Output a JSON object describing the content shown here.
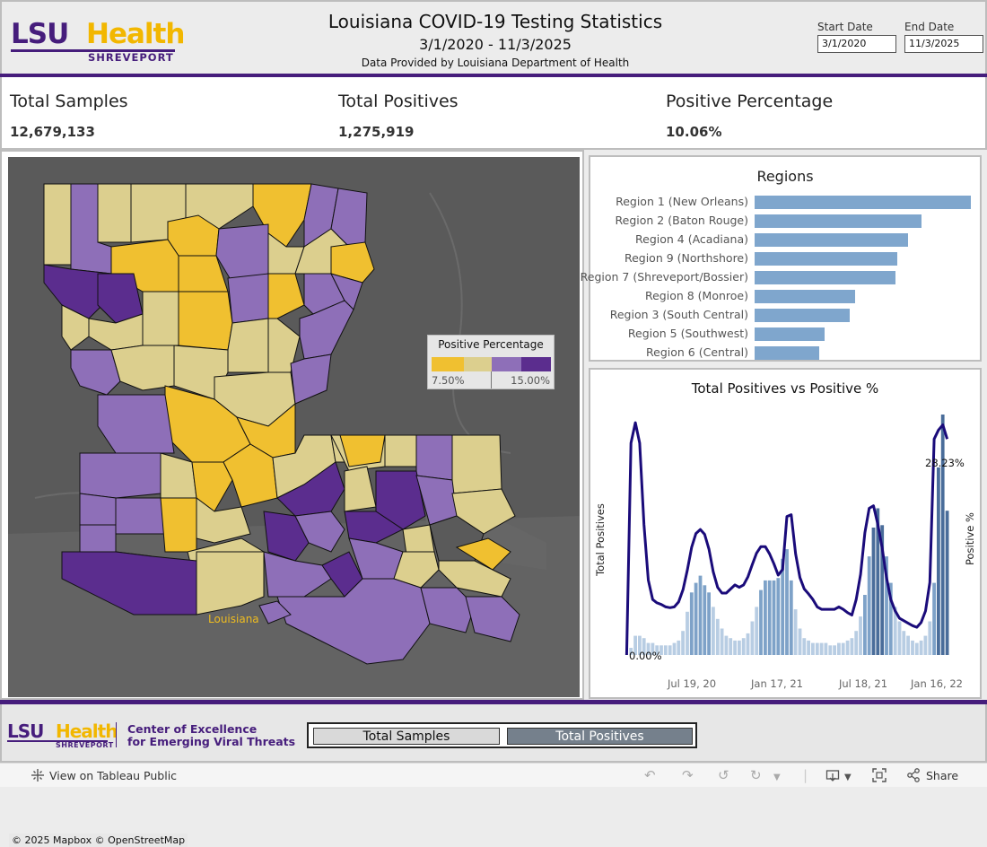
{
  "header": {
    "logo": {
      "word1": "LSU",
      "word2": "Health",
      "sub": "SHREVEPORT"
    },
    "title": "Louisiana COVID-19 Testing Statistics",
    "date_range": "3/1/2020 - 11/3/2025",
    "provider": "Data Provided by Louisiana Department of Health",
    "start_date": {
      "label": "Start Date",
      "value": "3/1/2020"
    },
    "end_date": {
      "label": "End Date",
      "value": "11/3/2025"
    }
  },
  "kpis": [
    {
      "label": "Total Samples",
      "value": "12,679,133"
    },
    {
      "label": "Total Positives",
      "value": "1,275,919"
    },
    {
      "label": "Positive Percentage",
      "value": "10.06%"
    }
  ],
  "map": {
    "legend_title": "Positive Percentage",
    "legend_min": "7.50%",
    "legend_max": "15.00%",
    "legend_colors": [
      "#f0c030",
      "#dccf8e",
      "#8e6fb8",
      "#5b2d8e"
    ],
    "state_label": "Louisiana",
    "attribution": "© 2025 Mapbox  © OpenStreetMap"
  },
  "regions": {
    "title": "Regions",
    "items": [
      {
        "label": "Region 1 (New Orleans)",
        "value": 1.0
      },
      {
        "label": "Region 2 (Baton Rouge)",
        "value": 0.77
      },
      {
        "label": "Region 4 (Acadiana)",
        "value": 0.71
      },
      {
        "label": "Region 9 (Northshore)",
        "value": 0.66
      },
      {
        "label": "Region 7 (Shreveport/Bossier)",
        "value": 0.65
      },
      {
        "label": "Region 8 (Monroe)",
        "value": 0.465
      },
      {
        "label": "Region 3 (South Central)",
        "value": 0.44
      },
      {
        "label": "Region 5 (Southwest)",
        "value": 0.325
      },
      {
        "label": "Region 6 (Central)",
        "value": 0.3
      }
    ]
  },
  "chart_data": {
    "type": "bar",
    "title": "Total Positives vs Positive %",
    "ylabel": "Total Positives",
    "y2label": "Positive %",
    "x_ticks": [
      "Jul 19, 20",
      "Jan 17, 21",
      "Jul 18, 21",
      "Jan 16, 22"
    ],
    "annotations": [
      "28.23%",
      "0.00%"
    ],
    "series": [
      {
        "name": "Total Positives",
        "type": "bar",
        "values": [
          0,
          3,
          8,
          8,
          7,
          5,
          5,
          4,
          4,
          4,
          4,
          5,
          6,
          10,
          18,
          26,
          30,
          33,
          29,
          26,
          20,
          15,
          11,
          8,
          7,
          6,
          6,
          7,
          9,
          14,
          20,
          27,
          31,
          31,
          31,
          32,
          40,
          44,
          31,
          19,
          11,
          7,
          6,
          5,
          5,
          5,
          5,
          4,
          4,
          5,
          5,
          6,
          7,
          10,
          16,
          25,
          41,
          53,
          61,
          54,
          41,
          30,
          20,
          14,
          10,
          8,
          6,
          5,
          6,
          8,
          14,
          30,
          78,
          100,
          60
        ]
      },
      {
        "name": "Positive %",
        "type": "line",
        "values": [
          0.0,
          26.0,
          28.5,
          26.0,
          16.0,
          9.2,
          6.8,
          6.4,
          6.2,
          5.9,
          5.8,
          5.9,
          6.5,
          8.0,
          10.4,
          13.2,
          14.9,
          15.4,
          14.8,
          13.0,
          10.2,
          8.3,
          7.6,
          7.6,
          8.1,
          8.6,
          8.3,
          8.6,
          9.6,
          11.1,
          12.5,
          13.3,
          13.3,
          12.4,
          11.2,
          9.8,
          10.5,
          17.0,
          17.2,
          12.4,
          9.5,
          8.1,
          7.5,
          6.8,
          5.9,
          5.6,
          5.6,
          5.6,
          5.6,
          5.9,
          5.6,
          5.2,
          4.9,
          6.8,
          9.9,
          15.0,
          18.0,
          18.3,
          16.0,
          13.1,
          9.5,
          6.8,
          5.4,
          4.5,
          4.2,
          3.9,
          3.6,
          3.4,
          4.0,
          5.4,
          8.9,
          26.5,
          27.6,
          28.23,
          26.5
        ]
      }
    ]
  },
  "footer": {
    "logo": {
      "word1": "LSU",
      "word2": "Health",
      "sub": "SHREVEPORT"
    },
    "center_line1": "Center of Excellence",
    "center_line2": "for Emerging Viral Threats",
    "toggle_samples": "Total Samples",
    "toggle_positives": "Total Positives"
  },
  "toolbar": {
    "view_link": "View on Tableau Public",
    "share": "Share"
  }
}
